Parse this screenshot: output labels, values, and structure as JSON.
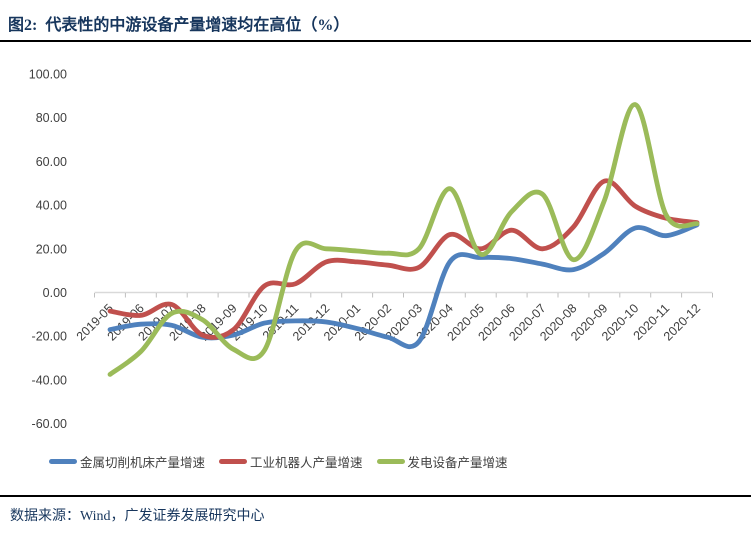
{
  "header": {
    "title": "图2:  代表性的中游设备产量增速均在高位（%）",
    "title_color": "#17365D"
  },
  "footer": {
    "source": "数据来源：Wind，广发证券发展研究中心"
  },
  "chart_data": {
    "type": "line",
    "title": "图2:  代表性的中游设备产量增速均在高位（%）",
    "x": [
      "2019-05",
      "2019-06",
      "2019-07",
      "2019-08",
      "2019-09",
      "2019-10",
      "2019-11",
      "2019-12",
      "2020-01",
      "2020-02",
      "2020-03",
      "2020-04",
      "2020-05",
      "2020-06",
      "2020-07",
      "2020-08",
      "2020-09",
      "2020-10",
      "2020-11",
      "2020-12"
    ],
    "series": [
      {
        "name": "金属切削机床产量增速",
        "color": "#4F81BD",
        "values": [
          -17,
          -14.5,
          -15,
          -20.5,
          -19.5,
          -14,
          -13,
          -13.5,
          -16.5,
          -20.5,
          -22.5,
          14,
          16,
          15.5,
          13,
          10.5,
          18,
          29.5,
          26,
          31
        ]
      },
      {
        "name": "工业机器人产量增速",
        "color": "#C0504D",
        "values": [
          -8.5,
          -10.5,
          -5.5,
          -19.5,
          -17,
          3,
          4,
          14,
          14,
          12.5,
          11.5,
          26.5,
          20,
          28.5,
          20,
          30,
          51,
          39.5,
          34,
          32
        ]
      },
      {
        "name": "发电设备产量增速",
        "color": "#9BBB59",
        "values": [
          -37.5,
          -27,
          -9.5,
          -12.5,
          -26,
          -26.5,
          19,
          20,
          19,
          18,
          20,
          47.5,
          17.5,
          37,
          45,
          15,
          42,
          86,
          35.5,
          31.5
        ]
      }
    ],
    "ylim": [
      -60,
      100
    ],
    "y_ticks": [
      100,
      80,
      60,
      40,
      20,
      0,
      -20,
      -40,
      -60
    ],
    "grid": false,
    "smooth": true,
    "legend_position": "bottom",
    "axis_line_color": "#D9D9D9",
    "tick_color": "#BFBFBF",
    "label_color": "#404040"
  }
}
